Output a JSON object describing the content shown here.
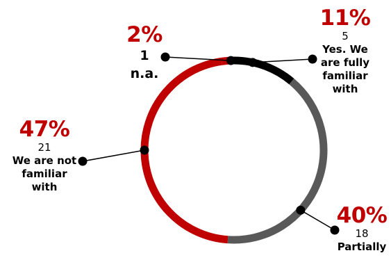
{
  "chart_data": {
    "type": "pie",
    "style": "donut",
    "title": "",
    "slices": [
      {
        "key": "yes",
        "percent": "11%",
        "count": "5",
        "lines": [
          "Yes. We",
          "are fully",
          "familiar",
          "with"
        ],
        "value": 5,
        "color": "#000000"
      },
      {
        "key": "partially",
        "percent": "40%",
        "count": "18",
        "lines": [
          "Partially"
        ],
        "value": 18,
        "color": "#595959"
      },
      {
        "key": "not",
        "percent": "47%",
        "count": "21",
        "lines": [
          "We are not",
          "familiar",
          "with"
        ],
        "value": 21,
        "color": "#c00000"
      },
      {
        "key": "na",
        "percent": "2%",
        "count": "1",
        "lines": [
          "n.a."
        ],
        "value": 1,
        "color": "#c00000"
      }
    ],
    "percent_color": "#c00000",
    "legend": "none"
  }
}
